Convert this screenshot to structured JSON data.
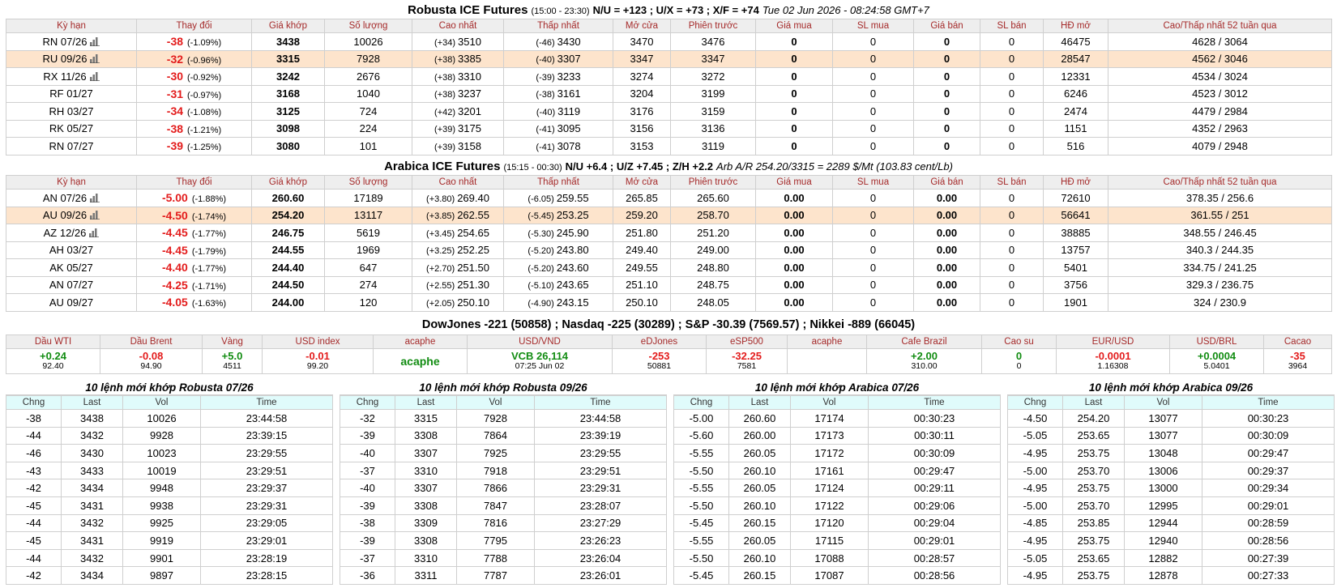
{
  "robusta": {
    "title": "Robusta ICE Futures",
    "session": "(15:00 - 23:30)",
    "spreads": "N/U = +123 ; U/X = +73 ; X/F = +74",
    "note": "Tue 02 Jun 2026 - 08:24:58 GMT+7",
    "headers": [
      "Kỳ hạn",
      "Thay đổi",
      "Giá khớp",
      "Số lượng",
      "Cao nhất",
      "Thấp nhất",
      "Mở cửa",
      "Phiên trước",
      "Giá mua",
      "SL mua",
      "Giá bán",
      "SL bán",
      "HĐ mở",
      "Cao/Thấp nhất 52 tuần qua"
    ],
    "rows": [
      [
        "RN 07/26",
        "-38",
        "(-1.09%)",
        "3438",
        "10026",
        "(+34)",
        "3510",
        "(-46)",
        "3430",
        "3470",
        "3476",
        "0",
        "0",
        "0",
        "0",
        "46475",
        "4628 / 3064"
      ],
      [
        "RU 09/26",
        "-32",
        "(-0.96%)",
        "3315",
        "7928",
        "(+38)",
        "3385",
        "(-40)",
        "3307",
        "3347",
        "3347",
        "0",
        "0",
        "0",
        "0",
        "28547",
        "4562 / 3046"
      ],
      [
        "RX 11/26",
        "-30",
        "(-0.92%)",
        "3242",
        "2676",
        "(+38)",
        "3310",
        "(-39)",
        "3233",
        "3274",
        "3272",
        "0",
        "0",
        "0",
        "0",
        "12331",
        "4534 / 3024"
      ],
      [
        "RF 01/27",
        "-31",
        "(-0.97%)",
        "3168",
        "1040",
        "(+38)",
        "3237",
        "(-38)",
        "3161",
        "3204",
        "3199",
        "0",
        "0",
        "0",
        "0",
        "6246",
        "4523 / 3012"
      ],
      [
        "RH 03/27",
        "-34",
        "(-1.08%)",
        "3125",
        "724",
        "(+42)",
        "3201",
        "(-40)",
        "3119",
        "3176",
        "3159",
        "0",
        "0",
        "0",
        "0",
        "2474",
        "4479 / 2984"
      ],
      [
        "RK 05/27",
        "-38",
        "(-1.21%)",
        "3098",
        "224",
        "(+39)",
        "3175",
        "(-41)",
        "3095",
        "3156",
        "3136",
        "0",
        "0",
        "0",
        "0",
        "1151",
        "4352 / 2963"
      ],
      [
        "RN 07/27",
        "-39",
        "(-1.25%)",
        "3080",
        "101",
        "(+39)",
        "3158",
        "(-41)",
        "3078",
        "3153",
        "3119",
        "0",
        "0",
        "0",
        "0",
        "516",
        "4079 / 2948"
      ]
    ]
  },
  "arabica": {
    "title": "Arabica ICE Futures",
    "session": "(15:15 - 00:30)",
    "spreads": "N/U +6.4 ; U/Z +7.45 ; Z/H +2.2",
    "note": "Arb A/R 254.20/3315 = 2289 $/Mt (103.83 cent/Lb)",
    "headers": [
      "Kỳ hạn",
      "Thay đổi",
      "Giá khớp",
      "Số lượng",
      "Cao nhất",
      "Thấp nhất",
      "Mở cửa",
      "Phiên trước",
      "Giá mua",
      "SL mua",
      "Giá bán",
      "SL bán",
      "HĐ mở",
      "Cao/Thấp nhất 52 tuần qua"
    ],
    "rows": [
      [
        "AN 07/26",
        "-5.00",
        "(-1.88%)",
        "260.60",
        "17189",
        "(+3.80)",
        "269.40",
        "(-6.05)",
        "259.55",
        "265.85",
        "265.60",
        "0.00",
        "0",
        "0.00",
        "0",
        "72610",
        "378.35 / 256.6"
      ],
      [
        "AU 09/26",
        "-4.50",
        "(-1.74%)",
        "254.20",
        "13117",
        "(+3.85)",
        "262.55",
        "(-5.45)",
        "253.25",
        "259.20",
        "258.70",
        "0.00",
        "0",
        "0.00",
        "0",
        "56641",
        "361.55 / 251"
      ],
      [
        "AZ 12/26",
        "-4.45",
        "(-1.77%)",
        "246.75",
        "5619",
        "(+3.45)",
        "254.65",
        "(-5.30)",
        "245.90",
        "251.80",
        "251.20",
        "0.00",
        "0",
        "0.00",
        "0",
        "38885",
        "348.55 / 246.45"
      ],
      [
        "AH 03/27",
        "-4.45",
        "(-1.79%)",
        "244.55",
        "1969",
        "(+3.25)",
        "252.25",
        "(-5.20)",
        "243.80",
        "249.40",
        "249.00",
        "0.00",
        "0",
        "0.00",
        "0",
        "13757",
        "340.3 / 244.35"
      ],
      [
        "AK 05/27",
        "-4.40",
        "(-1.77%)",
        "244.40",
        "647",
        "(+2.70)",
        "251.50",
        "(-5.20)",
        "243.60",
        "249.55",
        "248.80",
        "0.00",
        "0",
        "0.00",
        "0",
        "5401",
        "334.75 / 241.25"
      ],
      [
        "AN 07/27",
        "-4.25",
        "(-1.71%)",
        "244.50",
        "274",
        "(+2.55)",
        "251.30",
        "(-5.10)",
        "243.65",
        "251.10",
        "248.75",
        "0.00",
        "0",
        "0.00",
        "0",
        "3756",
        "329.3 / 236.75"
      ],
      [
        "AU 09/27",
        "-4.05",
        "(-1.63%)",
        "244.00",
        "120",
        "(+2.05)",
        "250.10",
        "(-4.90)",
        "243.15",
        "250.10",
        "248.05",
        "0.00",
        "0",
        "0.00",
        "0",
        "1901",
        "324 / 230.9"
      ]
    ]
  },
  "indices": "DowJones -221 (50858) ; Nasdaq -225 (30289) ; S&P -30.39 (7569.57) ; Nikkei -889 (66045)",
  "markets": [
    {
      "label": "Dầu WTI",
      "main": "+0.24",
      "sub": "92.40"
    },
    {
      "label": "Dầu Brent",
      "main": "-0.08",
      "sub": "94.90"
    },
    {
      "label": "Vàng",
      "main": "+5.0",
      "sub": "4511"
    },
    {
      "label": "USD index",
      "main": "-0.01",
      "sub": "99.20"
    },
    {
      "label": "acaphe",
      "main": "acaphe"
    },
    {
      "label": "USD/VND",
      "main": "VCB 26,114",
      "sub": "07:25 Jun 02"
    },
    {
      "label": "eDJones",
      "main": "-253",
      "sub": "50881"
    },
    {
      "label": "eSP500",
      "main": "-32.25",
      "sub": "7581"
    },
    {
      "label": "acaphe"
    },
    {
      "label": "Cafe Brazil",
      "main": "+2.00",
      "sub": "310.00"
    },
    {
      "label": "Cao su",
      "main": "0",
      "sub": "0"
    },
    {
      "label": "EUR/USD",
      "main": "-0.0001",
      "sub": "1.16308"
    },
    {
      "label": "USD/BRL",
      "main": "+0.0004",
      "sub": "5.0401"
    },
    {
      "label": "Cacao",
      "main": "-35",
      "sub": "3964"
    }
  ],
  "trades": [
    {
      "title": "10 lệnh mới khớp Robusta 07/26",
      "headers": [
        "Chng",
        "Last",
        "Vol",
        "Time"
      ],
      "rows": [
        [
          "-38",
          "3438",
          "10026",
          "23:44:58"
        ],
        [
          "-44",
          "3432",
          "9928",
          "23:39:15"
        ],
        [
          "-46",
          "3430",
          "10023",
          "23:29:55"
        ],
        [
          "-43",
          "3433",
          "10019",
          "23:29:51"
        ],
        [
          "-42",
          "3434",
          "9948",
          "23:29:37"
        ],
        [
          "-45",
          "3431",
          "9938",
          "23:29:31"
        ],
        [
          "-44",
          "3432",
          "9925",
          "23:29:05"
        ],
        [
          "-45",
          "3431",
          "9919",
          "23:29:01"
        ],
        [
          "-44",
          "3432",
          "9901",
          "23:28:19"
        ],
        [
          "-42",
          "3434",
          "9897",
          "23:28:15"
        ]
      ]
    },
    {
      "title": "10 lệnh mới khớp Robusta 09/26",
      "headers": [
        "Chng",
        "Last",
        "Vol",
        "Time"
      ],
      "rows": [
        [
          "-32",
          "3315",
          "7928",
          "23:44:58"
        ],
        [
          "-39",
          "3308",
          "7864",
          "23:39:19"
        ],
        [
          "-40",
          "3307",
          "7925",
          "23:29:55"
        ],
        [
          "-37",
          "3310",
          "7918",
          "23:29:51"
        ],
        [
          "-40",
          "3307",
          "7866",
          "23:29:31"
        ],
        [
          "-39",
          "3308",
          "7847",
          "23:28:07"
        ],
        [
          "-38",
          "3309",
          "7816",
          "23:27:29"
        ],
        [
          "-39",
          "3308",
          "7795",
          "23:26:23"
        ],
        [
          "-37",
          "3310",
          "7788",
          "23:26:04"
        ],
        [
          "-36",
          "3311",
          "7787",
          "23:26:01"
        ]
      ]
    },
    {
      "title": "10 lệnh mới khớp Arabica 07/26",
      "headers": [
        "Chng",
        "Last",
        "Vol",
        "Time"
      ],
      "rows": [
        [
          "-5.00",
          "260.60",
          "17174",
          "00:30:23"
        ],
        [
          "-5.60",
          "260.00",
          "17173",
          "00:30:11"
        ],
        [
          "-5.55",
          "260.05",
          "17172",
          "00:30:09"
        ],
        [
          "-5.50",
          "260.10",
          "17161",
          "00:29:47"
        ],
        [
          "-5.55",
          "260.05",
          "17124",
          "00:29:11"
        ],
        [
          "-5.50",
          "260.10",
          "17122",
          "00:29:06"
        ],
        [
          "-5.45",
          "260.15",
          "17120",
          "00:29:04"
        ],
        [
          "-5.55",
          "260.05",
          "17115",
          "00:29:01"
        ],
        [
          "-5.50",
          "260.10",
          "17088",
          "00:28:57"
        ],
        [
          "-5.45",
          "260.15",
          "17087",
          "00:28:56"
        ]
      ]
    },
    {
      "title": "10 lệnh mới khớp Arabica 09/26",
      "headers": [
        "Chng",
        "Last",
        "Vol",
        "Time"
      ],
      "rows": [
        [
          "-4.50",
          "254.20",
          "13077",
          "00:30:23"
        ],
        [
          "-5.05",
          "253.65",
          "13077",
          "00:30:09"
        ],
        [
          "-4.95",
          "253.75",
          "13048",
          "00:29:47"
        ],
        [
          "-5.00",
          "253.70",
          "13006",
          "00:29:37"
        ],
        [
          "-4.95",
          "253.75",
          "13000",
          "00:29:34"
        ],
        [
          "-5.00",
          "253.70",
          "12995",
          "00:29:01"
        ],
        [
          "-4.85",
          "253.85",
          "12944",
          "00:28:59"
        ],
        [
          "-4.95",
          "253.75",
          "12940",
          "00:28:56"
        ],
        [
          "-5.05",
          "253.65",
          "12882",
          "00:27:39"
        ],
        [
          "-4.95",
          "253.75",
          "12878",
          "00:27:33"
        ]
      ]
    }
  ]
}
